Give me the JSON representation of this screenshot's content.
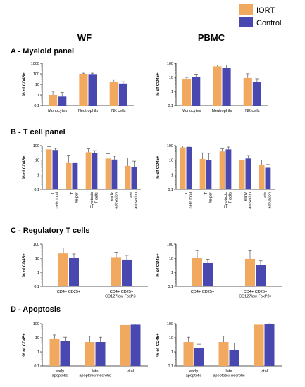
{
  "colors": {
    "iort": "#f0a95e",
    "control": "#4848b0",
    "error": "#555555",
    "axis": "#222222"
  },
  "legend": [
    {
      "label": "IORT",
      "color_key": "iort"
    },
    {
      "label": "Control",
      "color_key": "control"
    }
  ],
  "columns": [
    "WF",
    "PBMC"
  ],
  "panels": [
    {
      "title": "A - Myeloid panel"
    },
    {
      "title": "B - T cell panel"
    },
    {
      "title": "C - Regulatory T cells"
    },
    {
      "title": "D - Apoptosis"
    }
  ],
  "chart_data": [
    {
      "type": "bar",
      "column": "WF",
      "panel": "A - Myeloid panel",
      "categories": [
        "Monocytes",
        "Neutrophils",
        "NK cells"
      ],
      "series": [
        {
          "name": "IORT",
          "values": [
            1.0,
            100,
            18
          ],
          "errors": [
            1.2,
            15,
            10
          ]
        },
        {
          "name": "Control",
          "values": [
            0.7,
            95,
            12
          ],
          "errors": [
            1.0,
            20,
            6
          ]
        }
      ],
      "ylabel": "% of CD45+",
      "yscale": "log",
      "ylim": [
        0.1,
        1000
      ],
      "yticks": [
        "0.1",
        "1",
        "10",
        "100",
        "1000"
      ]
    },
    {
      "type": "bar",
      "column": "PBMC",
      "panel": "A - Myeloid panel",
      "categories": [
        "Monocytes",
        "Neutrophils",
        "NK cells"
      ],
      "series": [
        {
          "name": "IORT",
          "values": [
            8,
            60,
            9
          ],
          "errors": [
            2,
            15,
            9
          ]
        },
        {
          "name": "Control",
          "values": [
            11,
            45,
            5
          ],
          "errors": [
            6,
            30,
            3
          ]
        }
      ],
      "ylabel": "% of CD45+",
      "yscale": "log",
      "ylim": [
        0.1,
        100
      ],
      "yticks": [
        "0.1",
        "1",
        "10",
        "100"
      ]
    },
    {
      "type": "bar",
      "column": "WF",
      "panel": "B - T cell panel",
      "categories": [
        "T cells total",
        "T helper",
        "Cytotoxic T cells",
        "early activation",
        "late activation"
      ],
      "series": [
        {
          "name": "IORT",
          "values": [
            55,
            7,
            35,
            13,
            4
          ],
          "errors": [
            30,
            15,
            25,
            15,
            10
          ]
        },
        {
          "name": "Control",
          "values": [
            50,
            7,
            30,
            11,
            3.5
          ],
          "errors": [
            15,
            13,
            15,
            8,
            5
          ]
        }
      ],
      "ylabel": "% of CD45+",
      "yscale": "log",
      "ylim": [
        0.1,
        100
      ],
      "yticks": [
        "0.1",
        "1",
        "10",
        "100"
      ]
    },
    {
      "type": "bar",
      "column": "PBMC",
      "panel": "B - T cell panel",
      "categories": [
        "T cells total",
        "T helper",
        "Cytotoxic T cells",
        "early activation",
        "late activation"
      ],
      "series": [
        {
          "name": "IORT",
          "values": [
            75,
            12,
            40,
            10,
            5
          ],
          "errors": [
            20,
            20,
            20,
            10,
            5
          ]
        },
        {
          "name": "Control",
          "values": [
            80,
            10,
            55,
            13,
            3
          ],
          "errors": [
            10,
            20,
            25,
            8,
            2
          ]
        }
      ],
      "ylabel": "% of CD45+",
      "yscale": "log",
      "ylim": [
        0.1,
        100
      ],
      "yticks": [
        "0.1",
        "1",
        "10",
        "100"
      ]
    },
    {
      "type": "bar",
      "column": "WF",
      "panel": "C - Regulatory T cells",
      "categories": [
        "CD4+ CD25+",
        "CD4+ CD25+\nCD127low FoxP3+"
      ],
      "series": [
        {
          "name": "IORT",
          "values": [
            22,
            12
          ],
          "errors": [
            30,
            15
          ]
        },
        {
          "name": "Control",
          "values": [
            10,
            8
          ],
          "errors": [
            10,
            8
          ]
        }
      ],
      "ylabel": "% of CD45+",
      "yscale": "log",
      "ylim": [
        0.1,
        100
      ],
      "yticks": [
        "0.1",
        "1",
        "10",
        "100"
      ]
    },
    {
      "type": "bar",
      "column": "PBMC",
      "panel": "C - Regulatory T cells",
      "categories": [
        "CD4+ CD25+",
        "CD4+ CD25+\nCD127low FoxP3+"
      ],
      "series": [
        {
          "name": "IORT",
          "values": [
            10,
            9
          ],
          "errors": [
            25,
            25
          ]
        },
        {
          "name": "Control",
          "values": [
            4.5,
            3.5
          ],
          "errors": [
            4,
            3
          ]
        }
      ],
      "ylabel": "% of CD45+",
      "yscale": "log",
      "ylim": [
        0.1,
        100
      ],
      "yticks": [
        "0.1",
        "1",
        "10",
        "100"
      ]
    },
    {
      "type": "bar",
      "column": "WF",
      "panel": "D - Apoptosis",
      "categories": [
        "early apoptotic",
        "late apoptotic/ necrotic",
        "vital"
      ],
      "series": [
        {
          "name": "IORT",
          "values": [
            8,
            5,
            80
          ],
          "errors": [
            8,
            8,
            15
          ]
        },
        {
          "name": "Control",
          "values": [
            6,
            5,
            85
          ],
          "errors": [
            5,
            6,
            10
          ]
        }
      ],
      "ylabel": "% of CD45+",
      "yscale": "log",
      "ylim": [
        0.1,
        100
      ],
      "yticks": [
        "0.1",
        "1",
        "10",
        "100"
      ]
    },
    {
      "type": "bar",
      "column": "PBMC",
      "panel": "D - Apoptosis",
      "categories": [
        "early apoptotic",
        "late apoptotic/ necrotic",
        "vital"
      ],
      "series": [
        {
          "name": "IORT",
          "values": [
            5,
            5,
            85
          ],
          "errors": [
            6,
            8,
            10
          ]
        },
        {
          "name": "Control",
          "values": [
            2,
            1.3,
            90
          ],
          "errors": [
            1.5,
            3,
            8
          ]
        }
      ],
      "ylabel": "% of CD45+",
      "yscale": "log",
      "ylim": [
        0.1,
        100
      ],
      "yticks": [
        "0.1",
        "1",
        "10",
        "100"
      ]
    }
  ]
}
